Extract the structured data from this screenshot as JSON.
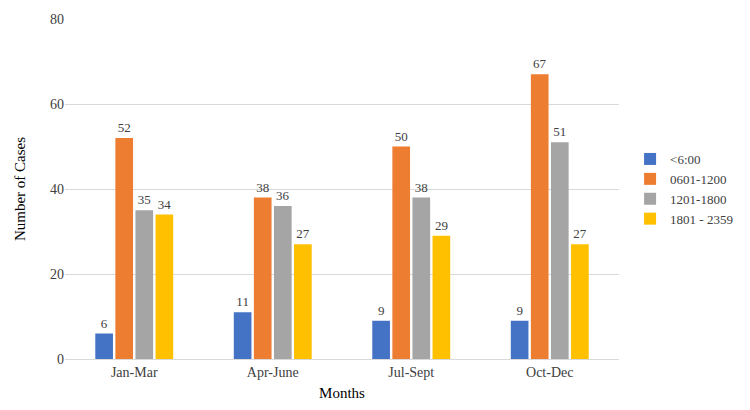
{
  "chart_data": {
    "type": "bar",
    "x_label": "Months",
    "y_label": "Number of Cases",
    "categories": [
      "Jan-Mar",
      "Apr-June",
      "Jul-Sept",
      "Oct-Dec"
    ],
    "series": [
      {
        "name": "<6:00",
        "color": "#4472c4",
        "values": [
          6,
          11,
          9,
          9
        ]
      },
      {
        "name": "0601-1200",
        "color": "#ed7d31",
        "values": [
          52,
          38,
          50,
          67
        ]
      },
      {
        "name": "1201-1800",
        "color": "#a5a5a5",
        "values": [
          35,
          36,
          38,
          51
        ]
      },
      {
        "name": "1801 - 2359",
        "color": "#ffc000",
        "values": [
          34,
          27,
          29,
          27
        ]
      }
    ],
    "ylim": [
      0,
      80
    ],
    "yticks": [
      0,
      20,
      40,
      60,
      80
    ],
    "grid": true,
    "legend": "right",
    "data_labels": true
  }
}
